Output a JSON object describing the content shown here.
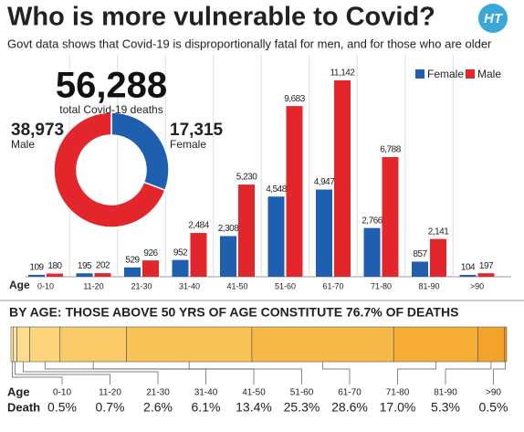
{
  "title": "Who is more vulnerable to Covid?",
  "subtitle": "Govt data shows that Covid-19 is disproportionally fatal for men, and for those who are older",
  "logo": "HT",
  "chart_data": [
    {
      "type": "bar",
      "x_label": "Age",
      "legend": "top-right",
      "categories": [
        "0-10",
        "11-20",
        "21-30",
        "31-40",
        "41-50",
        "51-60",
        "61-70",
        "71-80",
        "81-90",
        ">90"
      ],
      "series": [
        {
          "name": "Female",
          "color": "#1f5fb0",
          "values": [
            109,
            195,
            529,
            952,
            2308,
            4548,
            4947,
            2766,
            857,
            104
          ],
          "value_labels": [
            "109",
            "195",
            "529",
            "952",
            "2,308",
            "4,548",
            "4,947",
            "2,766",
            "857",
            "104"
          ]
        },
        {
          "name": "Male",
          "color": "#e3262b",
          "values": [
            180,
            202,
            926,
            2484,
            5230,
            9683,
            11142,
            6788,
            2141,
            197
          ],
          "value_labels": [
            "180",
            "202",
            "926",
            "2,484",
            "5,230",
            "9,683",
            "11,142",
            "6,788",
            "2,141",
            "197"
          ]
        }
      ]
    },
    {
      "type": "donut",
      "total_label": "56,288",
      "total_caption": "total Covid-19 deaths",
      "categories": [
        "Male",
        "Female"
      ],
      "values": [
        38973,
        17315
      ],
      "value_labels": [
        "38,973",
        "17,315"
      ],
      "colors": [
        "#e3262b",
        "#1f5fb0"
      ]
    },
    {
      "type": "stacked-hbar",
      "title": "BY AGE: THOSE ABOVE 50 YRS OF AGE CONSTITUTE 76.7% OF DEATHS",
      "row_labels": [
        "Age",
        "Death"
      ],
      "categories": [
        "0-10",
        "11-20",
        "21-30",
        "31-40",
        "41-50",
        "51-60",
        "61-70",
        "71-80",
        "81-90",
        ">90"
      ],
      "values": [
        0.5,
        0.7,
        2.6,
        6.1,
        13.4,
        25.3,
        28.6,
        17.0,
        5.3,
        0.5
      ],
      "value_labels": [
        "0.5%",
        "0.7%",
        "2.6%",
        "6.1%",
        "13.4%",
        "25.3%",
        "28.6%",
        "17.0%",
        "5.3%",
        "0.5%"
      ],
      "colors": [
        "#fde9b0",
        "#fde4a2",
        "#fcdc8e",
        "#fbd47c",
        "#f9cb68",
        "#f8c257",
        "#f6b847",
        "#f5ad36",
        "#f3a329",
        "#f0961c"
      ]
    }
  ]
}
